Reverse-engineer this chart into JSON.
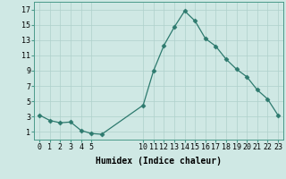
{
  "x": [
    0,
    1,
    2,
    3,
    4,
    5,
    6,
    10,
    11,
    12,
    13,
    14,
    15,
    16,
    17,
    18,
    19,
    20,
    21,
    22,
    23
  ],
  "y": [
    3.2,
    2.5,
    2.2,
    2.3,
    1.2,
    0.8,
    0.7,
    4.5,
    9.0,
    12.3,
    14.7,
    16.8,
    15.5,
    13.2,
    12.2,
    10.5,
    9.2,
    8.2,
    6.5,
    5.3,
    3.2
  ],
  "line_color": "#2d7a6e",
  "marker": "D",
  "marker_size": 2.5,
  "bg_color": "#cfe8e4",
  "grid_color": "#aed0cb",
  "xlabel": "Humidex (Indice chaleur)",
  "xlabel_fontsize": 7,
  "xticks": [
    0,
    1,
    2,
    3,
    4,
    5,
    10,
    11,
    12,
    13,
    14,
    15,
    16,
    17,
    18,
    19,
    20,
    21,
    22,
    23
  ],
  "yticks": [
    1,
    3,
    5,
    7,
    9,
    11,
    13,
    15,
    17
  ],
  "ylim": [
    0,
    18
  ],
  "xlim": [
    -0.5,
    23.5
  ],
  "tick_fontsize": 6,
  "spine_color": "#4a9a8a"
}
